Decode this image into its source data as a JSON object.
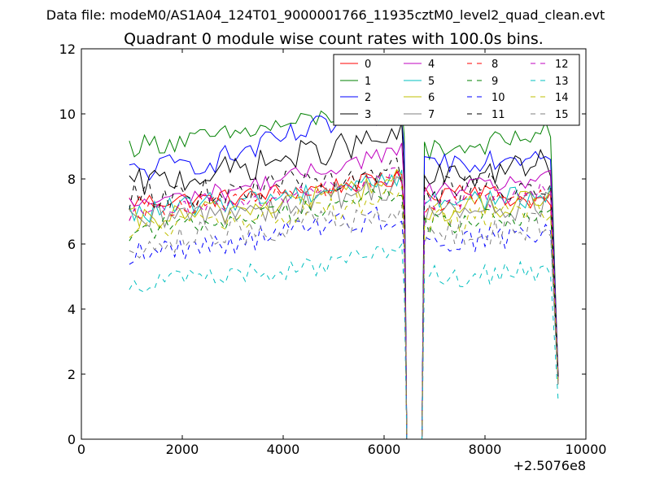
{
  "chart_data": {
    "type": "line",
    "suptitle": "Data file: modeM0/AS1A04_124T01_9000001766_11935cztM0_level2_quad_clean.evt",
    "title": "Quadrant 0 module wise count rates with 100.0s bins.",
    "xlabel": "",
    "ylabel": "",
    "xlim": [
      0,
      10000
    ],
    "ylim": [
      0,
      12
    ],
    "x_offset_label": "+2.5076e8",
    "xticks": [
      0,
      2000,
      4000,
      6000,
      8000,
      10000
    ],
    "xtick_labels": [
      "0",
      "2000",
      "4000",
      "6000",
      "8000",
      "10000"
    ],
    "yticks": [
      0,
      2,
      4,
      6,
      8,
      10,
      12
    ],
    "ytick_labels": [
      "0",
      "2",
      "4",
      "6",
      "8",
      "10",
      "12"
    ],
    "grid": false,
    "legend_position": "top-right",
    "legend_columns": 4,
    "segments": [
      {
        "start": 950,
        "end": 6450,
        "drop_to": 0
      },
      {
        "start": 6800,
        "end": 9450,
        "drop_to": 0
      }
    ],
    "bin_width": 100,
    "series": [
      {
        "name": "0",
        "color": "#ff0000",
        "dash": "solid",
        "seg1": [
          7.3,
          7.4,
          7.7,
          8.0
        ],
        "seg2": [
          7.5,
          7.8,
          7.4,
          7.3
        ],
        "end": 2.0
      },
      {
        "name": "1",
        "color": "#008000",
        "dash": "solid",
        "seg1": [
          9.0,
          9.3,
          9.8,
          10.5
        ],
        "seg2": [
          8.9,
          9.0,
          9.2,
          9.5
        ],
        "end": 1.9
      },
      {
        "name": "2",
        "color": "#0000ff",
        "dash": "solid",
        "seg1": [
          8.2,
          8.6,
          9.5,
          10.1
        ],
        "seg2": [
          8.5,
          8.6,
          8.7,
          8.9
        ],
        "end": 2.0
      },
      {
        "name": "3",
        "color": "#000000",
        "dash": "solid",
        "seg1": [
          7.8,
          8.2,
          8.8,
          9.3
        ],
        "seg2": [
          8.0,
          8.1,
          8.3,
          8.5
        ],
        "end": 1.9
      },
      {
        "name": "4",
        "color": "#bf00bf",
        "dash": "solid",
        "seg1": [
          7.2,
          7.6,
          8.2,
          8.9
        ],
        "seg2": [
          7.6,
          7.7,
          7.9,
          8.0
        ],
        "end": 1.8
      },
      {
        "name": "5",
        "color": "#00bfbf",
        "dash": "solid",
        "seg1": [
          6.9,
          7.3,
          7.6,
          8.1
        ],
        "seg2": [
          7.3,
          7.4,
          7.4,
          7.5
        ],
        "end": 1.8
      },
      {
        "name": "6",
        "color": "#bfbf00",
        "dash": "solid",
        "seg1": [
          6.7,
          7.0,
          7.4,
          8.0
        ],
        "seg2": [
          7.0,
          7.1,
          7.2,
          7.4
        ],
        "end": 1.7
      },
      {
        "name": "7",
        "color": "#808080",
        "dash": "solid",
        "seg1": [
          6.6,
          7.0,
          7.3,
          7.9
        ],
        "seg2": [
          6.9,
          7.0,
          7.1,
          7.3
        ],
        "end": 1.7
      },
      {
        "name": "8",
        "color": "#ff0000",
        "dash": "dashed",
        "seg1": [
          7.0,
          7.3,
          7.6,
          8.2
        ],
        "seg2": [
          7.2,
          7.3,
          7.4,
          7.5
        ],
        "end": 1.9
      },
      {
        "name": "9",
        "color": "#008000",
        "dash": "dashed",
        "seg1": [
          6.4,
          6.7,
          7.1,
          7.6
        ],
        "seg2": [
          6.6,
          6.7,
          6.8,
          7.0
        ],
        "end": 1.8
      },
      {
        "name": "10",
        "color": "#0000ff",
        "dash": "dashed",
        "seg1": [
          5.7,
          6.0,
          6.5,
          6.9
        ],
        "seg2": [
          6.0,
          6.1,
          6.2,
          6.4
        ],
        "end": 1.7
      },
      {
        "name": "11",
        "color": "#000000",
        "dash": "dashed",
        "seg1": [
          7.4,
          7.6,
          7.9,
          8.2
        ],
        "seg2": [
          7.6,
          7.7,
          7.8,
          7.9
        ],
        "end": 1.9
      },
      {
        "name": "12",
        "color": "#bf00bf",
        "dash": "dashed",
        "seg1": [
          6.9,
          7.2,
          7.6,
          8.2
        ],
        "seg2": [
          7.2,
          7.3,
          7.5,
          7.7
        ],
        "end": 1.8
      },
      {
        "name": "13",
        "color": "#00bfbf",
        "dash": "dashed",
        "seg1": [
          4.8,
          5.0,
          5.3,
          5.7
        ],
        "seg2": [
          5.0,
          5.0,
          5.1,
          5.2
        ],
        "end": 1.2
      },
      {
        "name": "14",
        "color": "#bfbf00",
        "dash": "dashed",
        "seg1": [
          6.4,
          6.7,
          7.0,
          7.5
        ],
        "seg2": [
          6.7,
          6.8,
          6.9,
          7.1
        ],
        "end": 1.7
      },
      {
        "name": "15",
        "color": "#808080",
        "dash": "dashed",
        "seg1": [
          6.0,
          6.3,
          6.6,
          7.0
        ],
        "seg2": [
          6.3,
          6.3,
          6.4,
          6.6
        ],
        "end": 1.6
      }
    ]
  }
}
